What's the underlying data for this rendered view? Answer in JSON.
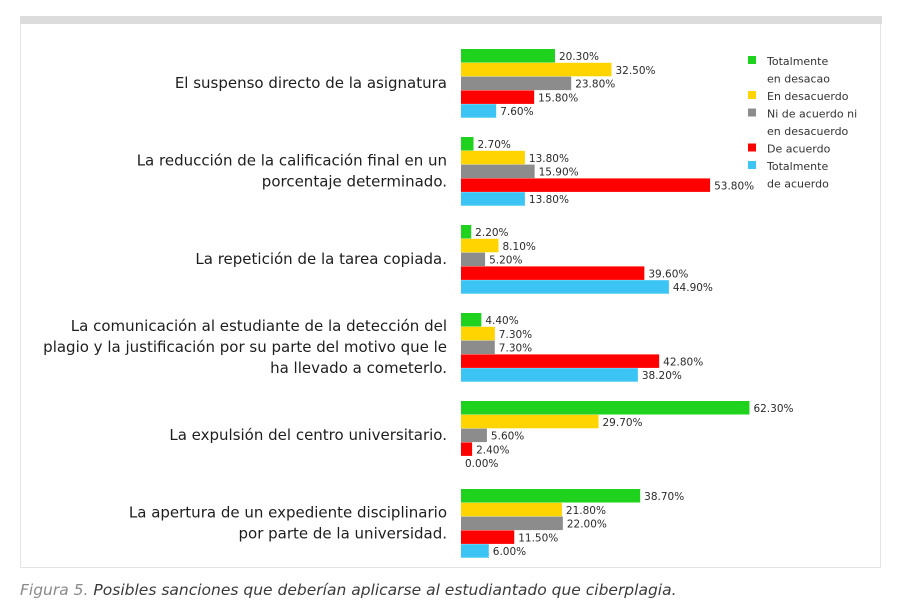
{
  "caption": {
    "figure_label": "Figura 5.",
    "text": "Posibles sanciones que deberían aplicarse al estudiantado que ciberplagia."
  },
  "chart_data": {
    "type": "bar",
    "orientation": "horizontal",
    "title": "",
    "xlabel": "",
    "ylabel": "",
    "xlim": [
      0,
      100
    ],
    "grid": false,
    "legend_position": "top-right",
    "value_suffix": "%",
    "categories": [
      [
        "El suspenso directo de la asignatura"
      ],
      [
        "La reducción de la calificación final en un",
        "porcentaje determinado."
      ],
      [
        "La repetición de la tarea copiada."
      ],
      [
        "La comunicación al estudiante de la detección del",
        "plagio y la justificación por su parte del motivo que le",
        "ha llevado a cometerlo."
      ],
      [
        "La expulsión del centro universitario."
      ],
      [
        "La apertura de un expediente disciplinario",
        "por parte de la universidad."
      ]
    ],
    "series": [
      {
        "name": "Totalmente en desacao",
        "legend_lines": [
          "Totalmente",
          "en desacao"
        ],
        "color": "#1ed21e",
        "values": [
          20.3,
          2.7,
          2.2,
          4.4,
          62.3,
          38.7
        ]
      },
      {
        "name": "En desacuerdo",
        "legend_lines": [
          "En desacuerdo"
        ],
        "color": "#ffd400",
        "values": [
          32.5,
          13.8,
          8.1,
          7.3,
          29.7,
          21.8
        ]
      },
      {
        "name": "Ni de acuerdo ni en desacuerdo",
        "legend_lines": [
          "Ni de acuerdo ni",
          "en desacuerdo"
        ],
        "color": "#8c8c8c",
        "values": [
          23.8,
          15.9,
          5.2,
          7.3,
          5.6,
          22.0
        ]
      },
      {
        "name": "De acuerdo",
        "legend_lines": [
          "De acuerdo"
        ],
        "color": "#ff0000",
        "values": [
          15.8,
          53.8,
          39.6,
          42.8,
          2.4,
          11.5
        ]
      },
      {
        "name": "Totalmente de acuerdo",
        "legend_lines": [
          "Totalmente",
          "de acuerdo"
        ],
        "color": "#3cc4f5",
        "values": [
          7.6,
          13.8,
          44.9,
          38.2,
          0.0,
          6.0
        ]
      }
    ]
  }
}
